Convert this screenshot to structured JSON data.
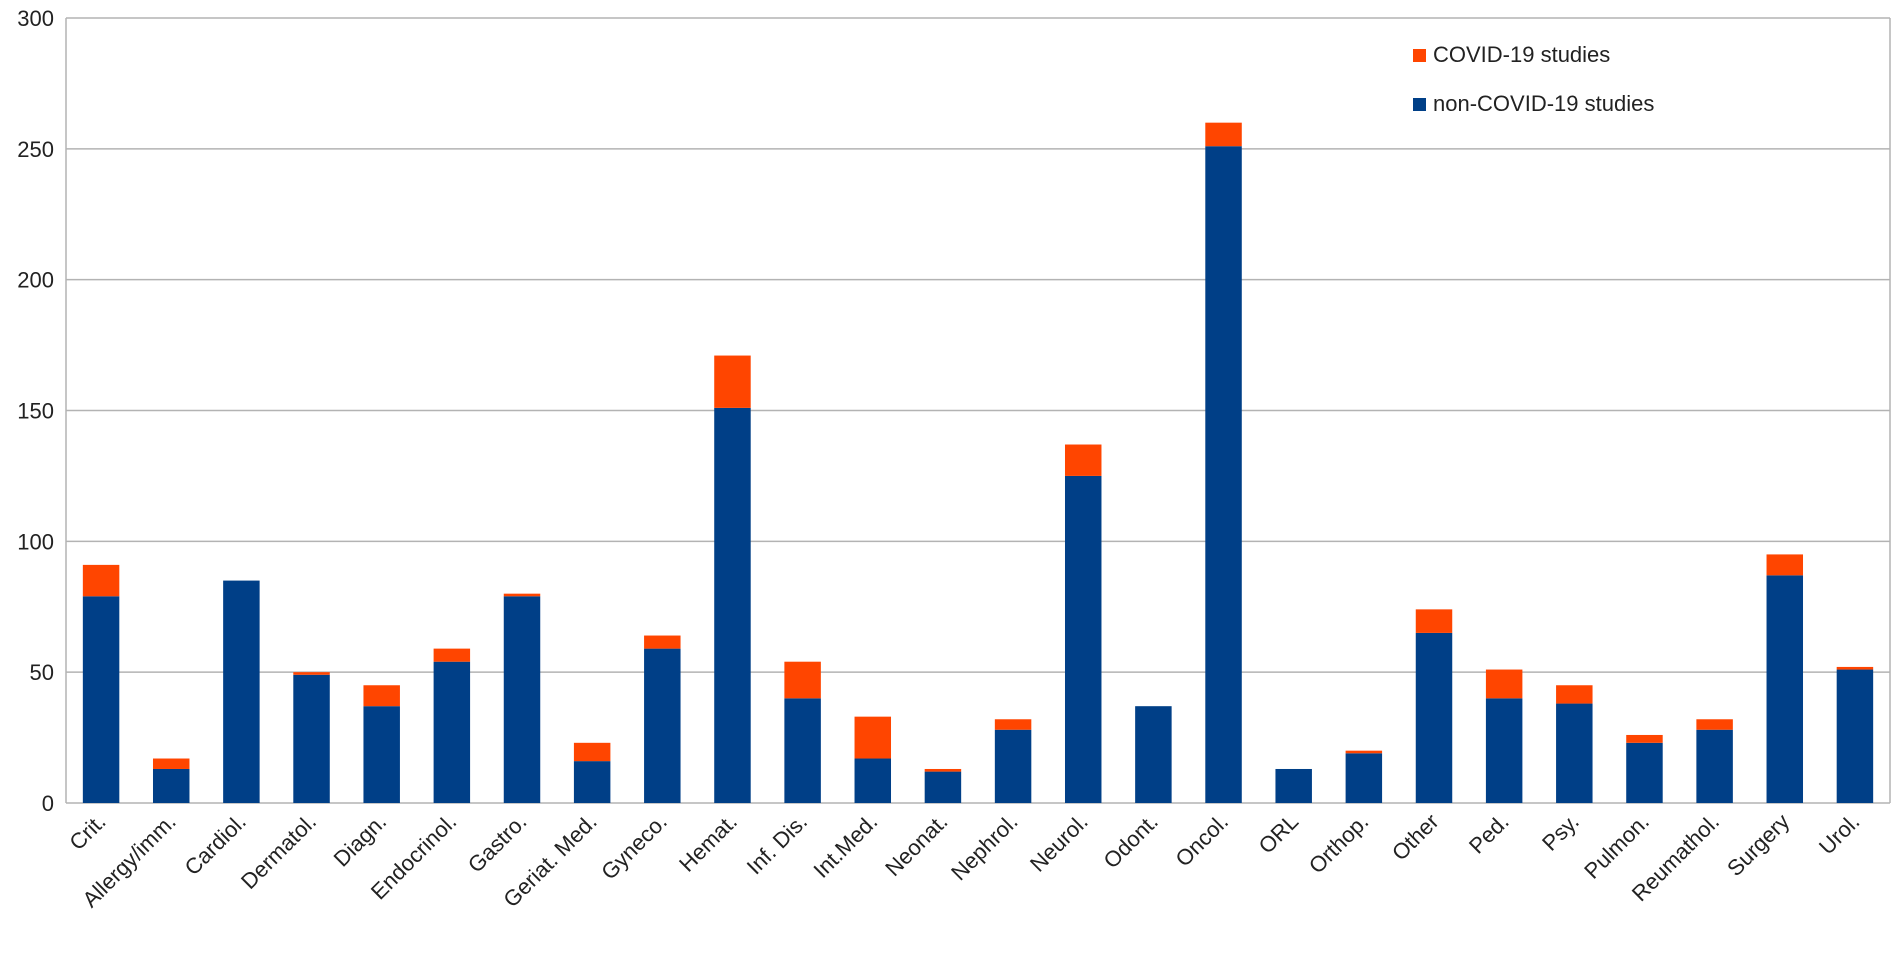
{
  "chart_data": {
    "type": "bar",
    "stacked": true,
    "title": "",
    "xlabel": "",
    "ylabel": "",
    "ylim": [
      0,
      300
    ],
    "yticks": [
      0,
      50,
      100,
      150,
      200,
      250,
      300
    ],
    "grid": true,
    "legend_position": "top-right",
    "categories": [
      "Crit.",
      "Allergy/imm.",
      "Cardiol.",
      "Dermatol.",
      "Diagn.",
      "Endocrinol.",
      "Gastro.",
      "Geriat. Med.",
      "Gyneco.",
      "Hemat.",
      "Inf. Dis.",
      "Int.Med.",
      "Neonat.",
      "Nephrol.",
      "Neurol.",
      "Odont.",
      "Oncol.",
      "ORL",
      "Orthop.",
      "Other",
      "Ped.",
      "Psy.",
      "Pulmon.",
      "Reumathol.",
      "Surgery",
      "Urol."
    ],
    "series": [
      {
        "name": "non-COVID-19 studies",
        "color": "#003F87",
        "values": [
          79,
          13,
          85,
          49,
          37,
          54,
          79,
          16,
          59,
          151,
          40,
          17,
          12,
          28,
          125,
          37,
          251,
          13,
          19,
          65,
          40,
          38,
          23,
          28,
          87,
          51
        ]
      },
      {
        "name": "COVID-19 studies",
        "color": "#FF4500",
        "values": [
          12,
          4,
          0,
          1,
          8,
          5,
          1,
          7,
          5,
          20,
          14,
          16,
          1,
          4,
          12,
          0,
          9,
          0,
          1,
          9,
          11,
          7,
          3,
          4,
          8,
          1
        ]
      }
    ],
    "legend": [
      {
        "label": "COVID-19 studies",
        "color": "#FF4500"
      },
      {
        "label": "non-COVID-19 studies",
        "color": "#003F87"
      }
    ]
  }
}
